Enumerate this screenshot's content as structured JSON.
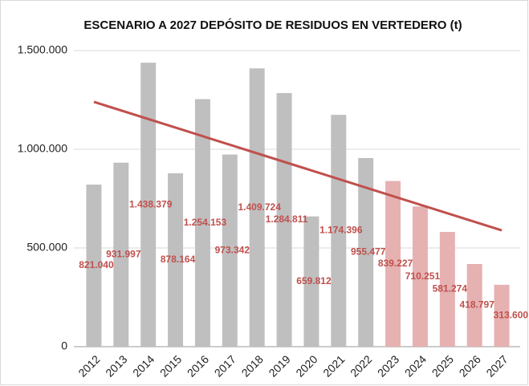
{
  "chart_data": {
    "type": "bar",
    "title": "ESCENARIO A 2027 DEPÓSITO DE RESIDUOS EN VERTEDERO (t)",
    "categories": [
      "2012",
      "2013",
      "2014",
      "2015",
      "2016",
      "2017",
      "2018",
      "2019",
      "2020",
      "2021",
      "2022",
      "2023",
      "2024",
      "2025",
      "2026",
      "2027"
    ],
    "values": [
      821040,
      931997,
      1438379,
      878164,
      1254153,
      973342,
      1409724,
      1284811,
      659812,
      1174396,
      955477,
      839227,
      710251,
      581274,
      418797,
      313600
    ],
    "value_labels": [
      "821.040",
      "931.997",
      "1.438.379",
      "878.164",
      "1.254.153",
      "973.342",
      "1.409.724",
      "1.284.811",
      "659.812",
      "1.174.396",
      "955.477",
      "839.227",
      "710.251",
      "581.274",
      "418.797",
      "313.600"
    ],
    "colors": [
      "#bfbfbf",
      "#bfbfbf",
      "#bfbfbf",
      "#bfbfbf",
      "#bfbfbf",
      "#bfbfbf",
      "#bfbfbf",
      "#bfbfbf",
      "#bfbfbf",
      "#bfbfbf",
      "#bfbfbf",
      "#e6b1b1",
      "#e6b1b1",
      "#e6b1b1",
      "#e6b1b1",
      "#e6b1b1"
    ],
    "trend_line": {
      "color": "#c0504d",
      "start": 1240000,
      "end": 589000
    },
    "ylim": [
      0,
      1500000
    ],
    "yticks": [
      0,
      {
        "value": 500000,
        "label": "500.000"
      },
      {
        "value": 1000000,
        "label": "1.000.000"
      },
      {
        "value": 1500000,
        "label": "1.500.000"
      }
    ],
    "grid": true
  }
}
